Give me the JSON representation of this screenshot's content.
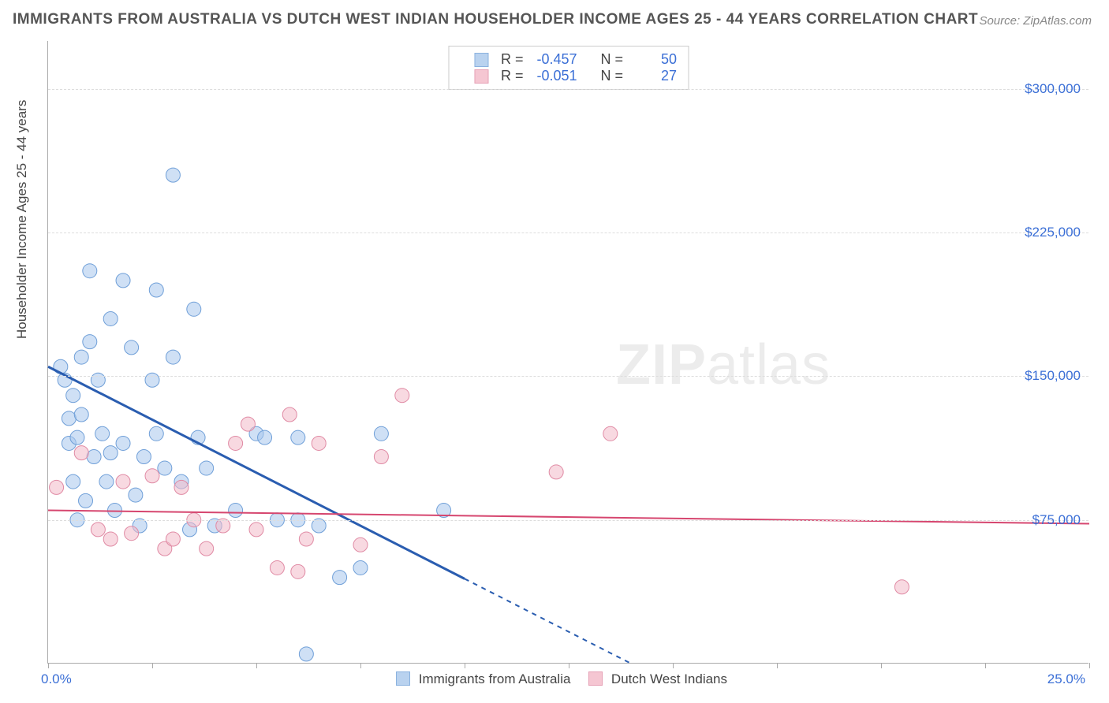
{
  "title": "IMMIGRANTS FROM AUSTRALIA VS DUTCH WEST INDIAN HOUSEHOLDER INCOME AGES 25 - 44 YEARS CORRELATION CHART",
  "source": "Source: ZipAtlas.com",
  "watermark_zip": "ZIP",
  "watermark_atlas": "atlas",
  "chart": {
    "type": "scatter",
    "ylabel": "Householder Income Ages 25 - 44 years",
    "xlim": [
      0.0,
      25.0
    ],
    "ylim": [
      0,
      325000
    ],
    "x_tick_positions": [
      0,
      2.5,
      5,
      7.5,
      10,
      12.5,
      15,
      17.5,
      20,
      22.5,
      25
    ],
    "x_min_label": "0.0%",
    "x_max_label": "25.0%",
    "y_gridlines": [
      75000,
      150000,
      225000,
      300000
    ],
    "y_tick_labels": [
      "$75,000",
      "$150,000",
      "$225,000",
      "$300,000"
    ],
    "grid_color": "#dddddd",
    "axis_color": "#aaaaaa",
    "background_color": "#ffffff",
    "tick_label_color": "#3b6fd6",
    "label_fontsize": 17,
    "title_fontsize": 19,
    "series": [
      {
        "name": "Immigrants from Australia",
        "color_fill": "#a8c7ec",
        "color_stroke": "#6f9fd8",
        "fill_opacity": 0.55,
        "marker_radius": 9,
        "r": -0.457,
        "n": 50,
        "trend": {
          "x1": 0.0,
          "y1": 155000,
          "x2": 14.0,
          "y2": 0,
          "solid_until_x": 10.0,
          "color": "#2a5db0",
          "width": 3
        },
        "points": [
          [
            0.3,
            155000
          ],
          [
            0.4,
            148000
          ],
          [
            0.5,
            115000
          ],
          [
            0.5,
            128000
          ],
          [
            0.6,
            95000
          ],
          [
            0.6,
            140000
          ],
          [
            0.7,
            118000
          ],
          [
            0.7,
            75000
          ],
          [
            0.8,
            160000
          ],
          [
            0.8,
            130000
          ],
          [
            0.9,
            85000
          ],
          [
            1.0,
            205000
          ],
          [
            1.0,
            168000
          ],
          [
            1.1,
            108000
          ],
          [
            1.2,
            148000
          ],
          [
            1.3,
            120000
          ],
          [
            1.4,
            95000
          ],
          [
            1.5,
            180000
          ],
          [
            1.5,
            110000
          ],
          [
            1.6,
            80000
          ],
          [
            1.8,
            200000
          ],
          [
            1.8,
            115000
          ],
          [
            2.0,
            165000
          ],
          [
            2.1,
            88000
          ],
          [
            2.2,
            72000
          ],
          [
            2.3,
            108000
          ],
          [
            2.5,
            148000
          ],
          [
            2.6,
            195000
          ],
          [
            2.6,
            120000
          ],
          [
            2.8,
            102000
          ],
          [
            3.0,
            255000
          ],
          [
            3.0,
            160000
          ],
          [
            3.2,
            95000
          ],
          [
            3.4,
            70000
          ],
          [
            3.5,
            185000
          ],
          [
            3.6,
            118000
          ],
          [
            3.8,
            102000
          ],
          [
            4.0,
            72000
          ],
          [
            4.5,
            80000
          ],
          [
            5.0,
            120000
          ],
          [
            5.2,
            118000
          ],
          [
            5.5,
            75000
          ],
          [
            6.0,
            118000
          ],
          [
            6.2,
            5000
          ],
          [
            6.5,
            72000
          ],
          [
            7.0,
            45000
          ],
          [
            7.5,
            50000
          ],
          [
            8.0,
            120000
          ],
          [
            9.5,
            80000
          ],
          [
            6.0,
            75000
          ]
        ]
      },
      {
        "name": "Dutch West Indians",
        "color_fill": "#f3b9c8",
        "color_stroke": "#e08aa4",
        "fill_opacity": 0.55,
        "marker_radius": 9,
        "r": -0.051,
        "n": 27,
        "trend": {
          "x1": 0.0,
          "y1": 80000,
          "x2": 25.0,
          "y2": 73000,
          "solid_until_x": 25.0,
          "color": "#d6466f",
          "width": 2
        },
        "points": [
          [
            0.2,
            92000
          ],
          [
            0.8,
            110000
          ],
          [
            1.2,
            70000
          ],
          [
            1.5,
            65000
          ],
          [
            1.8,
            95000
          ],
          [
            2.0,
            68000
          ],
          [
            2.5,
            98000
          ],
          [
            2.8,
            60000
          ],
          [
            3.0,
            65000
          ],
          [
            3.2,
            92000
          ],
          [
            3.5,
            75000
          ],
          [
            3.8,
            60000
          ],
          [
            4.2,
            72000
          ],
          [
            4.5,
            115000
          ],
          [
            4.8,
            125000
          ],
          [
            5.0,
            70000
          ],
          [
            5.5,
            50000
          ],
          [
            5.8,
            130000
          ],
          [
            6.0,
            48000
          ],
          [
            6.2,
            65000
          ],
          [
            6.5,
            115000
          ],
          [
            7.5,
            62000
          ],
          [
            8.0,
            108000
          ],
          [
            8.5,
            140000
          ],
          [
            12.2,
            100000
          ],
          [
            13.5,
            120000
          ],
          [
            20.5,
            40000
          ]
        ]
      }
    ],
    "top_legend": {
      "r_label": "R =",
      "n_label": "N ="
    },
    "bottom_legend": {
      "labels": [
        "Immigrants from Australia",
        "Dutch West Indians"
      ]
    }
  }
}
